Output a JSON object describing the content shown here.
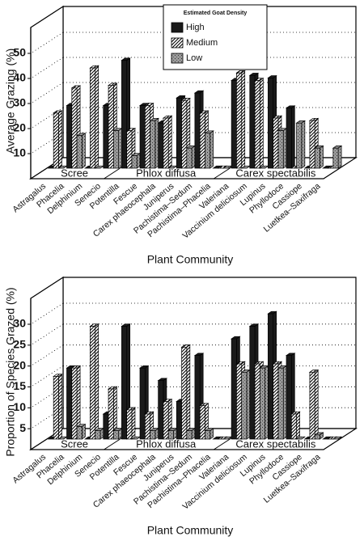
{
  "chart_data": [
    {
      "type": "bar3d",
      "y_label": "Average Grazing (%)",
      "x_label": "Plant Community",
      "legend": true,
      "legend_title": "Estimated Goat Density",
      "groups": [
        {
          "name": "Scree",
          "categories": [
            "Astragalus",
            "Phacelia",
            "Delphinium",
            "Senecio"
          ]
        },
        {
          "name": "Phlox diffusa",
          "categories": [
            "Potentilla",
            "Fescue",
            "Carex phaeocephala",
            "Juniperus",
            "Pachistima–Sedum",
            "Pachistima–Phacelia"
          ]
        },
        {
          "name": "Carex spectabilis",
          "categories": [
            "Valeriana",
            "Vaccinium deliciosum",
            "Lupinus",
            "Phyllodoce",
            "Cassiope",
            "Luetkea–Saxifraga"
          ]
        }
      ],
      "series": [
        {
          "name": "High",
          "color": "#1a1a1a",
          "pattern": "solid",
          "values": [
            0,
            25,
            0,
            25,
            43,
            25,
            18,
            28,
            30,
            0,
            35,
            37,
            36,
            24,
            0,
            0
          ]
        },
        {
          "name": "Medium",
          "color": "#ffffff",
          "pattern": "hatch",
          "values": [
            22,
            32,
            40,
            33,
            15,
            25,
            20,
            27,
            22,
            0,
            38,
            35,
            20,
            0,
            19,
            0
          ]
        },
        {
          "name": "Low",
          "color": "#9a9a9a",
          "pattern": "dots",
          "values": [
            0,
            13,
            0,
            15,
            5,
            19,
            0,
            8,
            14,
            0,
            0,
            0,
            15,
            18,
            8,
            8
          ]
        }
      ],
      "ylim": [
        0,
        50
      ],
      "yticks": [
        10,
        20,
        30,
        40,
        50
      ],
      "grid": true
    },
    {
      "type": "bar3d",
      "y_label": "Proportion of Species Grazed (%)",
      "x_label": "Plant Community",
      "legend": false,
      "groups": [
        {
          "name": "Scree",
          "categories": [
            "Astragalus",
            "Phacelia",
            "Delphinium",
            "Senecio"
          ]
        },
        {
          "name": "Phlox diffusa",
          "categories": [
            "Potentilla",
            "Fescue",
            "Carex phaeocephala",
            "Juniperus",
            "Pachistima–Sedum",
            "Pachistima–Phacelia"
          ]
        },
        {
          "name": "Carex spectabilis",
          "categories": [
            "Valeriana",
            "Vaccinium deliciosum",
            "Lupinus",
            "Phyllodoce",
            "Cassiope",
            "Luetkea–Saxifraga"
          ]
        }
      ],
      "series": [
        {
          "name": "High",
          "color": "#1a1a1a",
          "pattern": "solid",
          "values": [
            0,
            17,
            0,
            6,
            27,
            17,
            14,
            9,
            20,
            0,
            24,
            27,
            30,
            20,
            0,
            0
          ]
        },
        {
          "name": "Medium",
          "color": "#ffffff",
          "pattern": "hatch",
          "values": [
            15,
            17,
            27,
            12,
            7,
            6,
            9,
            22,
            8,
            0,
            18,
            18,
            18,
            6,
            16,
            0
          ]
        },
        {
          "name": "Low",
          "color": "#9a9a9a",
          "pattern": "dots",
          "values": [
            0,
            3,
            2,
            2,
            0,
            2,
            2,
            2,
            2,
            0,
            16,
            17,
            17,
            0,
            1,
            0
          ]
        }
      ],
      "ylim": [
        0,
        30
      ],
      "yticks": [
        5,
        10,
        15,
        20,
        25,
        30
      ],
      "grid": true
    }
  ]
}
